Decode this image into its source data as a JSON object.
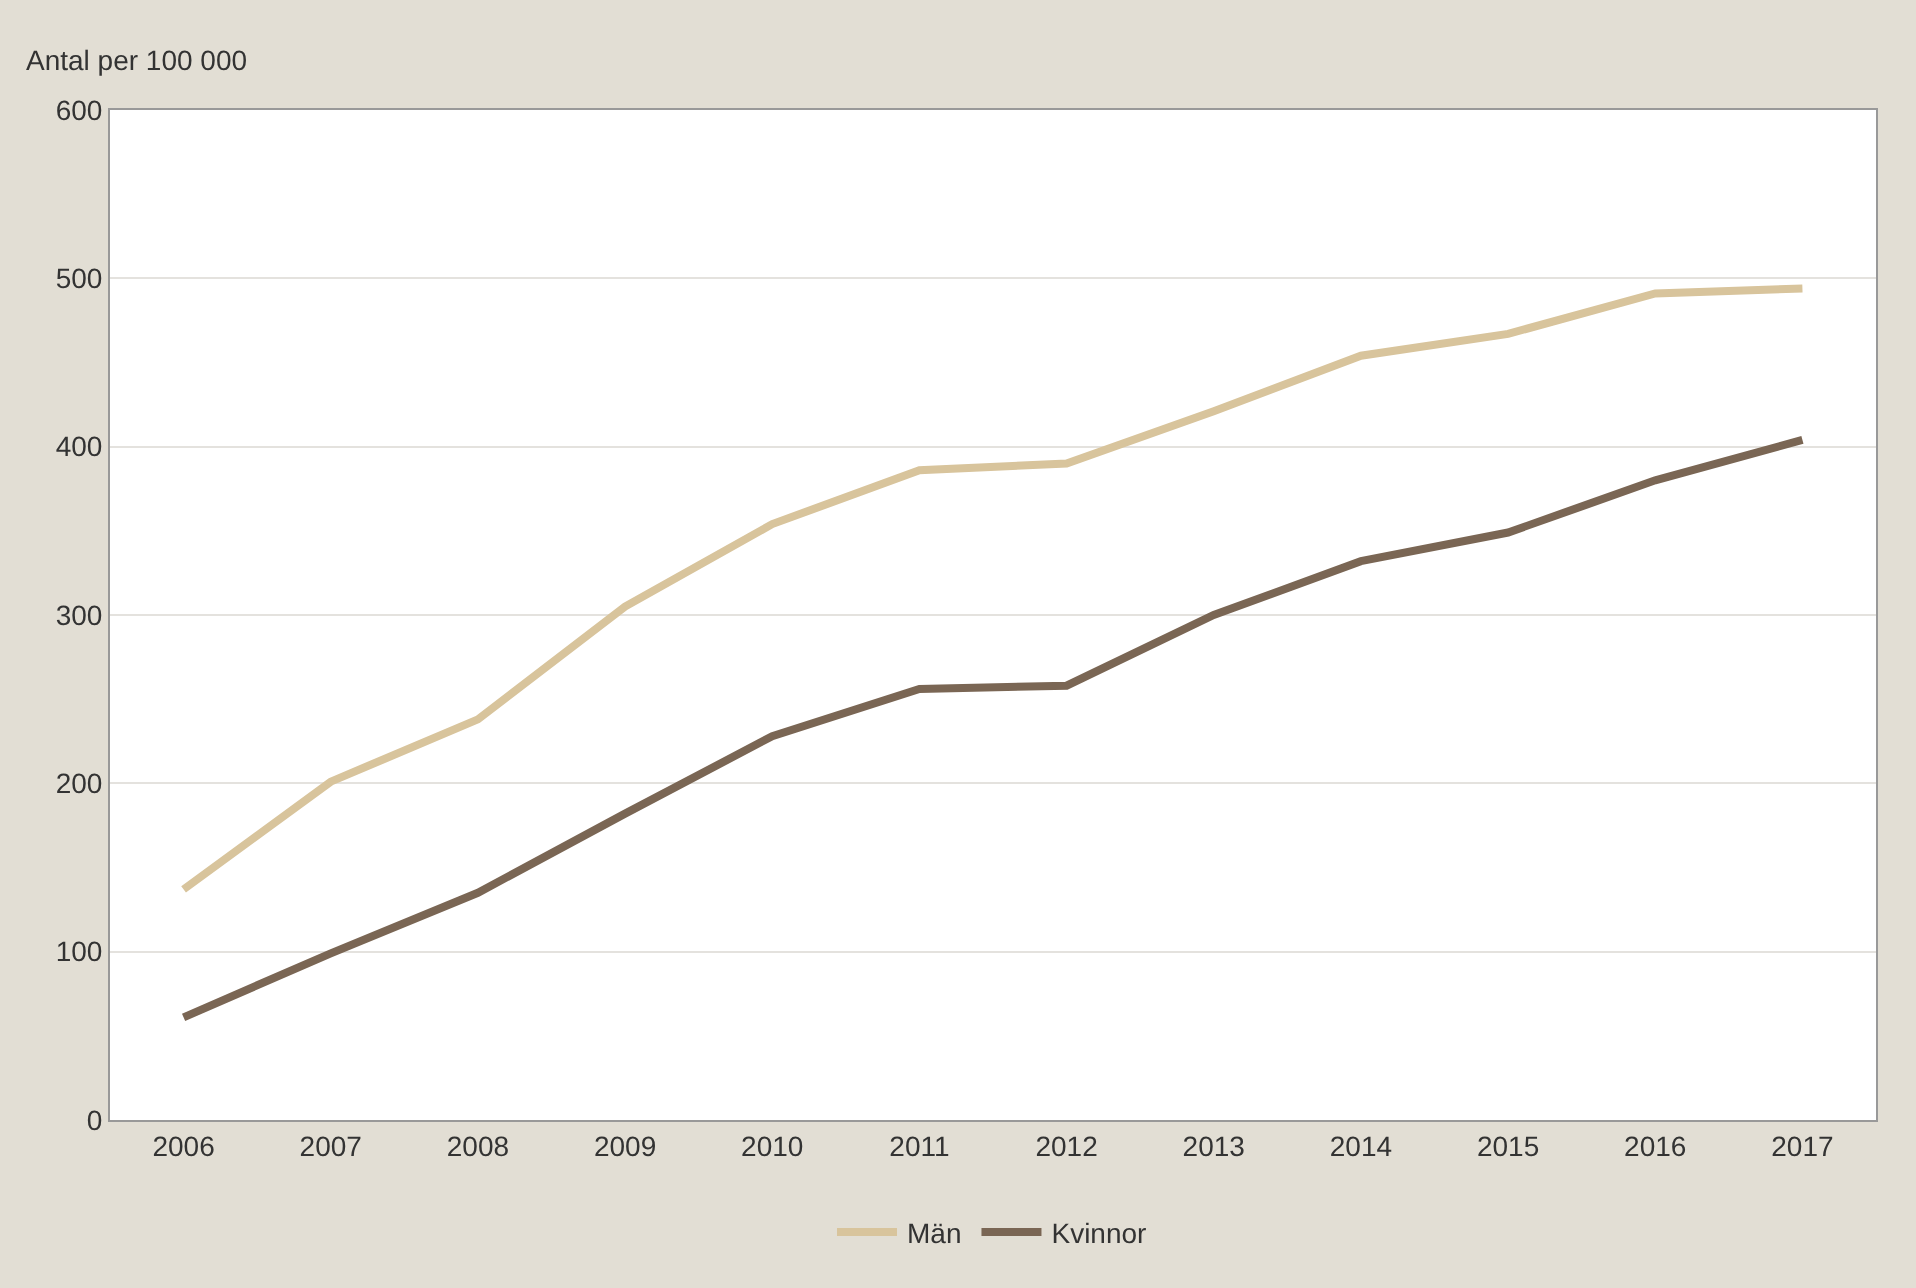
{
  "chart_data": {
    "type": "line",
    "ylabel": "Antal per 100 000",
    "categories": [
      "2006",
      "2007",
      "2008",
      "2009",
      "2010",
      "2011",
      "2012",
      "2013",
      "2014",
      "2015",
      "2016",
      "2017"
    ],
    "series": [
      {
        "name": "Män",
        "color": "#d8c49c",
        "values": [
          137,
          201,
          238,
          305,
          354,
          386,
          390,
          421,
          454,
          467,
          491,
          494
        ]
      },
      {
        "name": "Kvinnor",
        "color": "#7a6654",
        "values": [
          61,
          99,
          135,
          182,
          228,
          256,
          258,
          300,
          332,
          349,
          380,
          404
        ]
      }
    ],
    "ylim": [
      0,
      600
    ],
    "yticks": [
      0,
      100,
      200,
      300,
      400,
      500,
      600
    ],
    "grid": "y",
    "legend": "bottom",
    "marker": "none",
    "line_style": "solid"
  }
}
